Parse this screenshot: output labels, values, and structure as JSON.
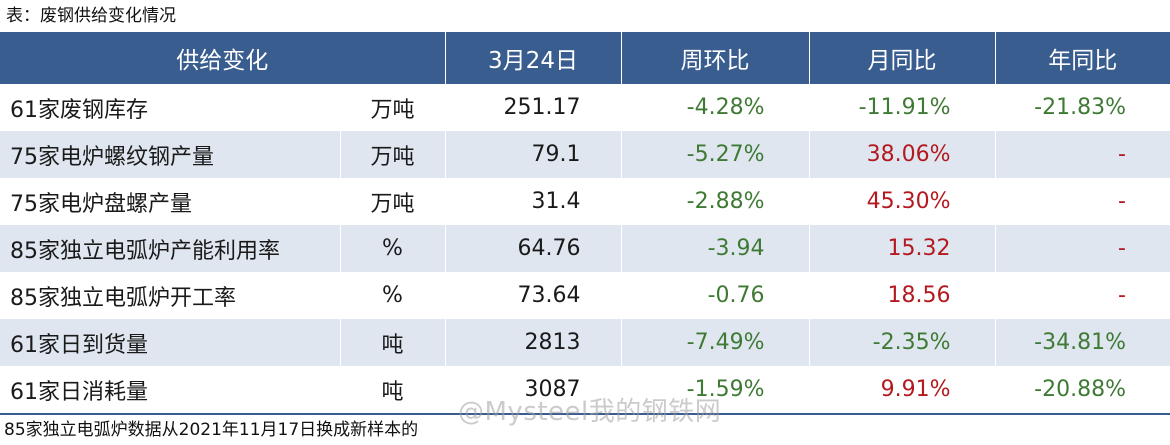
{
  "caption": "表：废钢供给变化情况",
  "headers": [
    "供给变化",
    "3月24日",
    "周环比",
    "月同比",
    "年同比"
  ],
  "rows": [
    {
      "name": "61家废钢库存",
      "unit": "万吨",
      "value": "251.17",
      "wow": "-4.28%",
      "mom": "-11.91%",
      "yoy": "-21.83%"
    },
    {
      "name": "75家电炉螺纹钢产量",
      "unit": "万吨",
      "value": "79.1",
      "wow": "-5.27%",
      "mom": "38.06%",
      "yoy": "-"
    },
    {
      "name": "75家电炉盘螺产量",
      "unit": "万吨",
      "value": "31.4",
      "wow": "-2.88%",
      "mom": "45.30%",
      "yoy": "-"
    },
    {
      "name": "85家独立电弧炉产能利用率",
      "unit": "%",
      "value": "64.76",
      "wow": "-3.94",
      "mom": "15.32",
      "yoy": "-"
    },
    {
      "name": "85家独立电弧炉开工率",
      "unit": "%",
      "value": "73.64",
      "wow": "-0.76",
      "mom": "18.56",
      "yoy": "-"
    },
    {
      "name": "61家日到货量",
      "unit": "吨",
      "value": "2813",
      "wow": "-7.49%",
      "mom": "-2.35%",
      "yoy": "-34.81%"
    },
    {
      "name": "61家日消耗量",
      "unit": "吨",
      "value": "3087",
      "wow": "-1.59%",
      "mom": "9.91%",
      "yoy": "-20.88%"
    }
  ],
  "footnote": "85家独立电弧炉数据从2021年11月17日换成新样本的",
  "watermark": "@Mysteel我的钢铁网",
  "colors": {
    "header_bg": "#3a5d8f",
    "band": "#dfe6f0",
    "negative": "#3f7a35",
    "positive": "#b3191f"
  }
}
